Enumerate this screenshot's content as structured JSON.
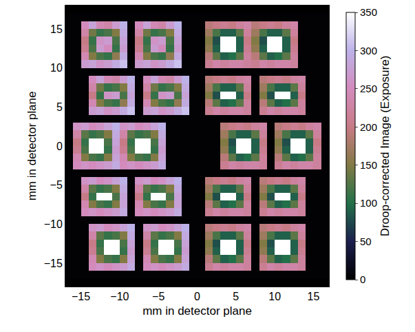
{
  "chart_data": {
    "type": "heatmap",
    "xlabel": "mm in detector plane",
    "ylabel": "mm in detector plane",
    "colorbar_title": "Droop-corrected Image (Exposure)",
    "xlim": [
      -17,
      17
    ],
    "ylim": [
      -18,
      18
    ],
    "xticks": [
      -15,
      -10,
      -5,
      0,
      5,
      10,
      15
    ],
    "yticks": [
      -15,
      -10,
      -5,
      0,
      5,
      10,
      15
    ],
    "zlim": [
      0,
      350
    ],
    "zticks": [
      0,
      50,
      100,
      150,
      200,
      250,
      300,
      350
    ],
    "x": [
      -16.5,
      -15.5,
      -14.5,
      -13.5,
      -12.5,
      -11.5,
      -10.5,
      -9.5,
      -8.5,
      -7.5,
      -6.5,
      -5.5,
      -4.5,
      -3.5,
      -2.5,
      -1.5,
      -0.5,
      0.5,
      1.5,
      2.5,
      3.5,
      4.5,
      5.5,
      6.5,
      7.5,
      8.5,
      9.5,
      10.5,
      11.5,
      12.5,
      13.5,
      14.5,
      15.5,
      16.5
    ],
    "y": [
      16.5,
      15.5,
      14.5,
      13.5,
      12.5,
      11.5,
      10.5,
      9.5,
      8.5,
      7.5,
      6.5,
      5.5,
      4.5,
      3.5,
      2.5,
      1.5,
      0.5,
      -0.5,
      -1.5,
      -2.5,
      -3.5,
      -4.5,
      -5.5,
      -6.5,
      -7.5,
      -8.5,
      -9.5,
      -10.5,
      -11.5,
      -12.5,
      -13.5,
      -14.5,
      -15.5,
      -16.5
    ],
    "z": [
      [
        3,
        3,
        3,
        3,
        3,
        3,
        3,
        3,
        3,
        3,
        3,
        3,
        3,
        3,
        3,
        3,
        3,
        3,
        3,
        3,
        3,
        3,
        3,
        3,
        3,
        3,
        3,
        3,
        3,
        3,
        3,
        3,
        3,
        3
      ],
      [
        3,
        3,
        250,
        280,
        240,
        230,
        270,
        300,
        3,
        250,
        280,
        240,
        230,
        270,
        300,
        3,
        3,
        3,
        190,
        200,
        210,
        200,
        220,
        230,
        190,
        200,
        210,
        200,
        220,
        230,
        3,
        3,
        3,
        3
      ],
      [
        3,
        3,
        230,
        140,
        110,
        120,
        150,
        290,
        3,
        230,
        140,
        110,
        120,
        150,
        290,
        3,
        3,
        3,
        170,
        120,
        90,
        90,
        130,
        220,
        170,
        120,
        90,
        90,
        130,
        220,
        3,
        3,
        3,
        3
      ],
      [
        3,
        3,
        200,
        110,
        260,
        270,
        120,
        280,
        3,
        200,
        110,
        260,
        270,
        120,
        280,
        3,
        3,
        3,
        150,
        80,
        400,
        400,
        90,
        200,
        150,
        80,
        400,
        400,
        90,
        200,
        3,
        3,
        3,
        3
      ],
      [
        3,
        3,
        210,
        120,
        270,
        250,
        110,
        270,
        3,
        210,
        120,
        270,
        250,
        110,
        270,
        3,
        3,
        3,
        160,
        90,
        400,
        400,
        90,
        210,
        160,
        90,
        400,
        400,
        90,
        210,
        3,
        3,
        3,
        3
      ],
      [
        3,
        3,
        240,
        150,
        120,
        110,
        160,
        290,
        3,
        240,
        150,
        120,
        110,
        160,
        290,
        3,
        3,
        3,
        190,
        130,
        90,
        100,
        130,
        220,
        190,
        130,
        90,
        100,
        130,
        220,
        3,
        3,
        3,
        3
      ],
      [
        3,
        3,
        270,
        280,
        260,
        270,
        290,
        310,
        3,
        270,
        280,
        260,
        270,
        290,
        310,
        3,
        3,
        3,
        210,
        230,
        220,
        230,
        230,
        220,
        210,
        230,
        220,
        230,
        230,
        220,
        3,
        3,
        3,
        3
      ],
      [
        3,
        3,
        3,
        3,
        3,
        3,
        3,
        3,
        3,
        3,
        3,
        3,
        3,
        3,
        3,
        3,
        3,
        3,
        3,
        3,
        3,
        3,
        3,
        3,
        3,
        3,
        3,
        3,
        3,
        3,
        3,
        3,
        3,
        3
      ],
      [
        3,
        3,
        3,
        250,
        280,
        240,
        230,
        270,
        300,
        3,
        250,
        280,
        240,
        230,
        270,
        300,
        3,
        3,
        190,
        200,
        210,
        200,
        220,
        230,
        3,
        190,
        200,
        210,
        200,
        220,
        230,
        3,
        3,
        3
      ],
      [
        3,
        3,
        3,
        230,
        140,
        110,
        120,
        150,
        290,
        3,
        230,
        140,
        110,
        120,
        150,
        290,
        3,
        3,
        170,
        120,
        90,
        90,
        130,
        220,
        3,
        170,
        120,
        90,
        90,
        130,
        220,
        3,
        3,
        3
      ],
      [
        3,
        3,
        3,
        200,
        110,
        260,
        270,
        120,
        280,
        3,
        200,
        110,
        260,
        270,
        120,
        280,
        3,
        3,
        150,
        80,
        400,
        400,
        90,
        200,
        3,
        150,
        80,
        400,
        400,
        90,
        200,
        3,
        3,
        3
      ],
      [
        3,
        3,
        3,
        240,
        150,
        120,
        110,
        160,
        290,
        3,
        240,
        150,
        120,
        110,
        160,
        290,
        3,
        3,
        190,
        130,
        90,
        100,
        130,
        220,
        3,
        190,
        130,
        90,
        100,
        130,
        220,
        3,
        3,
        3
      ],
      [
        3,
        3,
        3,
        270,
        280,
        260,
        270,
        290,
        310,
        3,
        270,
        280,
        260,
        270,
        290,
        310,
        3,
        3,
        210,
        230,
        220,
        230,
        230,
        220,
        3,
        210,
        230,
        220,
        230,
        230,
        220,
        3,
        3,
        3
      ],
      [
        3,
        3,
        3,
        3,
        3,
        3,
        3,
        3,
        3,
        3,
        3,
        3,
        3,
        3,
        3,
        3,
        3,
        3,
        3,
        3,
        3,
        3,
        3,
        3,
        3,
        3,
        3,
        3,
        3,
        3,
        3,
        3,
        3,
        3
      ],
      [
        3,
        260,
        270,
        250,
        260,
        280,
        300,
        260,
        270,
        250,
        260,
        280,
        300,
        3,
        3,
        3,
        3,
        3,
        3,
        3,
        190,
        200,
        210,
        200,
        220,
        230,
        3,
        190,
        200,
        210,
        200,
        220,
        230,
        3
      ],
      [
        3,
        230,
        130,
        110,
        120,
        150,
        290,
        230,
        130,
        110,
        120,
        150,
        290,
        3,
        3,
        3,
        3,
        3,
        3,
        3,
        170,
        120,
        90,
        90,
        130,
        220,
        3,
        170,
        120,
        90,
        90,
        130,
        220,
        3
      ],
      [
        3,
        200,
        110,
        380,
        380,
        120,
        280,
        200,
        110,
        380,
        380,
        120,
        280,
        3,
        3,
        3,
        3,
        3,
        3,
        3,
        150,
        80,
        400,
        400,
        90,
        200,
        3,
        150,
        80,
        400,
        400,
        90,
        200,
        3
      ],
      [
        3,
        210,
        120,
        370,
        380,
        110,
        270,
        210,
        120,
        370,
        380,
        110,
        270,
        3,
        3,
        3,
        3,
        3,
        3,
        3,
        160,
        90,
        400,
        400,
        90,
        210,
        3,
        160,
        90,
        400,
        400,
        90,
        210,
        3
      ],
      [
        3,
        240,
        150,
        120,
        110,
        150,
        280,
        240,
        150,
        120,
        110,
        150,
        280,
        3,
        3,
        3,
        3,
        3,
        3,
        3,
        190,
        130,
        90,
        100,
        130,
        220,
        3,
        190,
        130,
        90,
        100,
        130,
        220,
        3
      ],
      [
        3,
        250,
        260,
        250,
        260,
        270,
        290,
        250,
        260,
        250,
        260,
        270,
        290,
        3,
        3,
        3,
        3,
        3,
        3,
        3,
        210,
        230,
        220,
        230,
        230,
        220,
        3,
        210,
        230,
        220,
        230,
        230,
        220,
        3
      ],
      [
        3,
        3,
        3,
        3,
        3,
        3,
        3,
        3,
        3,
        3,
        3,
        3,
        3,
        3,
        3,
        3,
        3,
        3,
        3,
        3,
        3,
        3,
        3,
        3,
        3,
        3,
        3,
        3,
        3,
        3,
        3,
        3,
        3,
        3
      ],
      [
        3,
        3,
        260,
        270,
        250,
        260,
        280,
        300,
        3,
        260,
        270,
        250,
        260,
        280,
        300,
        3,
        3,
        3,
        190,
        200,
        210,
        200,
        220,
        230,
        3,
        190,
        200,
        210,
        200,
        220,
        230,
        3,
        3,
        3
      ],
      [
        3,
        3,
        230,
        130,
        110,
        120,
        150,
        290,
        3,
        230,
        130,
        110,
        120,
        150,
        290,
        3,
        3,
        3,
        170,
        120,
        90,
        90,
        130,
        220,
        3,
        170,
        120,
        90,
        90,
        130,
        220,
        3,
        3,
        3
      ],
      [
        3,
        3,
        200,
        110,
        380,
        380,
        120,
        280,
        3,
        200,
        110,
        380,
        380,
        120,
        280,
        3,
        3,
        3,
        150,
        80,
        400,
        400,
        90,
        200,
        3,
        150,
        80,
        400,
        400,
        90,
        200,
        3,
        3,
        3
      ],
      [
        3,
        3,
        240,
        150,
        120,
        110,
        150,
        280,
        3,
        240,
        150,
        120,
        110,
        150,
        280,
        3,
        3,
        3,
        190,
        130,
        90,
        100,
        130,
        220,
        3,
        190,
        130,
        90,
        100,
        130,
        220,
        3,
        3,
        3
      ],
      [
        3,
        3,
        250,
        260,
        250,
        260,
        270,
        290,
        3,
        250,
        260,
        250,
        260,
        270,
        290,
        3,
        3,
        3,
        210,
        230,
        220,
        230,
        230,
        220,
        3,
        210,
        230,
        220,
        230,
        230,
        220,
        3,
        3,
        3
      ],
      [
        3,
        3,
        3,
        3,
        3,
        3,
        3,
        3,
        3,
        3,
        3,
        3,
        3,
        3,
        3,
        3,
        3,
        3,
        3,
        3,
        3,
        3,
        3,
        3,
        3,
        3,
        3,
        3,
        3,
        3,
        3,
        3,
        3,
        3
      ],
      [
        3,
        3,
        3,
        260,
        270,
        250,
        260,
        280,
        300,
        3,
        260,
        270,
        250,
        260,
        280,
        300,
        3,
        3,
        190,
        200,
        210,
        200,
        220,
        230,
        3,
        190,
        200,
        210,
        200,
        220,
        230,
        3,
        3,
        3
      ],
      [
        3,
        3,
        3,
        230,
        130,
        110,
        120,
        150,
        290,
        3,
        230,
        130,
        110,
        120,
        150,
        290,
        3,
        3,
        170,
        120,
        90,
        90,
        130,
        220,
        3,
        170,
        120,
        90,
        90,
        130,
        220,
        3,
        3,
        3
      ],
      [
        3,
        3,
        3,
        200,
        110,
        380,
        380,
        120,
        280,
        3,
        200,
        110,
        380,
        380,
        120,
        280,
        3,
        3,
        150,
        80,
        400,
        400,
        90,
        200,
        3,
        150,
        80,
        400,
        400,
        90,
        200,
        3,
        3,
        3
      ],
      [
        3,
        3,
        3,
        210,
        120,
        370,
        380,
        110,
        270,
        3,
        210,
        120,
        370,
        380,
        110,
        270,
        3,
        3,
        160,
        90,
        400,
        400,
        90,
        210,
        3,
        160,
        90,
        400,
        400,
        90,
        210,
        3,
        3,
        3
      ],
      [
        3,
        3,
        3,
        240,
        150,
        120,
        110,
        150,
        280,
        3,
        240,
        150,
        120,
        110,
        150,
        280,
        3,
        3,
        190,
        130,
        90,
        100,
        130,
        220,
        3,
        190,
        130,
        90,
        100,
        130,
        220,
        3,
        3,
        3
      ],
      [
        3,
        3,
        3,
        250,
        260,
        250,
        260,
        270,
        290,
        3,
        250,
        260,
        250,
        260,
        270,
        290,
        3,
        3,
        210,
        230,
        220,
        230,
        230,
        220,
        3,
        210,
        230,
        220,
        230,
        230,
        220,
        3,
        3,
        3
      ],
      [
        3,
        3,
        3,
        3,
        3,
        3,
        3,
        3,
        3,
        3,
        3,
        3,
        3,
        3,
        3,
        3,
        3,
        3,
        3,
        3,
        3,
        3,
        3,
        3,
        3,
        3,
        3,
        3,
        3,
        3,
        3,
        3,
        3,
        3
      ]
    ]
  }
}
